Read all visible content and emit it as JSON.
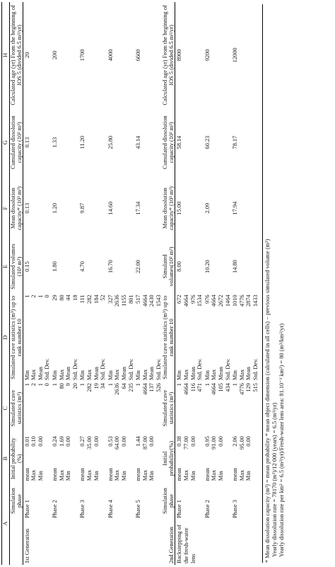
{
  "header": {
    "letters": [
      "A",
      "B",
      "C",
      "D",
      "E",
      "F",
      "G",
      "H"
    ],
    "columns": [
      "Simulation phase",
      "Initial probability (%)",
      "Simulated cave statistics (m³)",
      "Simulated cave statistics (m³) up to rank number 10",
      "Simulated volumes (10³ m³)",
      "Mean dissolution capacity* (10³ m³)",
      "Cumulated dissolution capacity (10³ m³)",
      "Calculated age (yr) From the beginning of IOS 5 (divided 6.5 m³/yr)"
    ]
  },
  "generations": [
    {
      "label": "1st Generation",
      "phases": [
        {
          "name": "Phase 1",
          "rows": [
            [
              "mean",
              "0.01",
              "1",
              "Min",
              "1"
            ],
            [
              "Max",
              "0.10",
              "2",
              "Max",
              "2"
            ],
            [
              "Min",
              "0.00",
              "1",
              "Mean",
              "1"
            ],
            [
              "",
              "",
              "0",
              "Std. Dev.",
              "0"
            ]
          ],
          "e": "0.15",
          "f": "0.13",
          "g": "0.13",
          "h": "20"
        },
        {
          "name": "Phase 2",
          "rows": [
            [
              "mean",
              "0.24",
              "1",
              "Min",
              "29"
            ],
            [
              "Max",
              "1.69",
              "80",
              "Max",
              "80"
            ],
            [
              "Min",
              "0.00",
              "9",
              "Mean",
              "44"
            ],
            [
              "",
              "",
              "20",
              "Std. Dev.",
              "18"
            ]
          ],
          "e": "1.80",
          "f": "1.20",
          "g": "1.33",
          "h": "200"
        },
        {
          "name": "Phase 3",
          "rows": [
            [
              "mean",
              "0.27",
              "1",
              "Min",
              "111"
            ],
            [
              "Max",
              "35.00",
              "282",
              "Max",
              "282"
            ],
            [
              "Min",
              "0.00",
              "19",
              "Mean",
              "184"
            ],
            [
              "",
              "",
              "34",
              "Std. Dev.",
              "52"
            ]
          ],
          "e": "4.70",
          "f": "9.87",
          "g": "11.20",
          "h": "1700"
        },
        {
          "name": "Phase 4",
          "rows": [
            [
              "mean",
              "0.53",
              "1",
              "Min",
              "327"
            ],
            [
              "Max",
              "64.00",
              "2636",
              "Max",
              "2636"
            ],
            [
              "Min",
              "0.00",
              "64",
              "Mean",
              "1155"
            ],
            [
              "",
              "",
              "235",
              "Std. Dev.",
              "801"
            ]
          ],
          "e": "16.70",
          "f": "14.60",
          "g": "25.80",
          "h": "4000"
        },
        {
          "name": "Phase 5",
          "rows": [
            [
              "mean",
              "1.44",
              "1",
              "Min",
              "517"
            ],
            [
              "Max",
              "87.00",
              "4664",
              "Max",
              "4664"
            ],
            [
              "Min",
              "0.00",
              "137",
              "Mean",
              "2430"
            ],
            [
              "",
              "",
              "526",
              "Std. Dev.",
              "1543"
            ]
          ],
          "e": "22.00",
          "f": "17.34",
          "g": "43.14",
          "h": "6600"
        }
      ]
    },
    {
      "label": "2nd Generation",
      "columns": [
        "Simulation phase",
        "Initial probability(%)",
        "Simulated cave statistics (m³)",
        "Simulated cave statistics (m³) up to rank number 10",
        "Simulated volumes(10³ m³)",
        "Mean dissolution capacity* (10³ m³)",
        "Cumulated dissolution capacity (10³ m³)",
        "Calculated age (yr) From the beginning of IOS 5 (divided 6.5 m³/yr)"
      ],
      "sublabel": "Backstepping of the fresh-water lens",
      "phases": [
        {
          "name": "Phase 1",
          "rows": [
            [
              "mean",
              "0.38",
              "1",
              "Min",
              "672"
            ],
            [
              "Max",
              "77.00",
              "4664",
              "Max",
              "4664"
            ],
            [
              "Min",
              "0.00",
              "116",
              "Mean",
              "976"
            ],
            [
              "",
              "",
              "471",
              "Std. Dev.",
              "1534"
            ]
          ],
          "e": "8.00",
          "f": "15.00",
          "g": "58.14",
          "h": "8900"
        },
        {
          "name": "Phase 2",
          "rows": [
            [
              "mean",
              "0.95",
              "1",
              "Min",
              "976"
            ],
            [
              "Max",
              "91.00",
              "4664",
              "Max",
              "4664"
            ],
            [
              "Min",
              "0.00",
              "105",
              "Mean",
              "2672"
            ],
            [
              "",
              "",
              "434",
              "Std. Dev.",
              "1464"
            ]
          ],
          "e": "10.20",
          "f": "2.09",
          "g": "60.23",
          "h": "9200"
        },
        {
          "name": "Phase 3",
          "rows": [
            [
              "mean",
              "2.06",
              "1",
              "Min",
              "1010"
            ],
            [
              "Max",
              "95.00",
              "4776",
              "Max",
              "4776"
            ],
            [
              "Min",
              "0.00",
              "129",
              "Mean",
              "2874"
            ],
            [
              "",
              "",
              "515",
              "Std. Dev.",
              "1433"
            ]
          ],
          "e": "14.80",
          "f": "17.94",
          "g": "78.17",
          "h": "12000"
        }
      ]
    }
  ],
  "footnotes": [
    "* Mean dissolution capacity (m³) = mean probability * mean object dimension (calculated in all cells) − previous simulated volume (m³)",
    "Yearly dissolution rate = 78170 (m³)/12 000 (years) = 6.5 (m³/yr)",
    "Yearly dissolution rate per km² = 6.5 (m³/yr)/Fresh-water lens area: 81.10⁻³ km²) = 80 (m³/km²/yr)"
  ]
}
